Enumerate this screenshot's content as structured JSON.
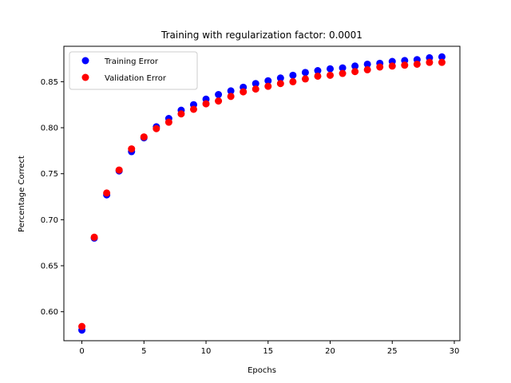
{
  "chart_data": {
    "type": "scatter",
    "title": "Training with regularization factor: 0.0001",
    "xlabel": "Epochs",
    "ylabel": "Percentage Correct",
    "xlim": [
      -1.45,
      30.45
    ],
    "ylim": [
      0.5685,
      0.8885
    ],
    "xticks": [
      0,
      5,
      10,
      15,
      20,
      25,
      30
    ],
    "yticks": [
      0.6,
      0.65,
      0.7,
      0.75,
      0.8,
      0.85
    ],
    "grid": false,
    "legend_position": "top-left",
    "x": [
      0,
      1,
      2,
      3,
      4,
      5,
      6,
      7,
      8,
      9,
      10,
      11,
      12,
      13,
      14,
      15,
      16,
      17,
      18,
      19,
      20,
      21,
      22,
      23,
      24,
      25,
      26,
      27,
      28,
      29
    ],
    "series": [
      {
        "name": "Training Error",
        "color": "#0000ff",
        "values": [
          0.58,
          0.68,
          0.727,
          0.753,
          0.774,
          0.789,
          0.801,
          0.81,
          0.819,
          0.825,
          0.831,
          0.836,
          0.84,
          0.844,
          0.848,
          0.851,
          0.854,
          0.857,
          0.86,
          0.862,
          0.864,
          0.865,
          0.867,
          0.869,
          0.87,
          0.872,
          0.873,
          0.874,
          0.876,
          0.877
        ]
      },
      {
        "name": "Validation Error",
        "color": "#ff0000",
        "values": [
          0.584,
          0.681,
          0.729,
          0.754,
          0.777,
          0.79,
          0.799,
          0.806,
          0.815,
          0.82,
          0.826,
          0.829,
          0.834,
          0.839,
          0.842,
          0.845,
          0.848,
          0.85,
          0.853,
          0.856,
          0.857,
          0.859,
          0.861,
          0.863,
          0.866,
          0.867,
          0.868,
          0.869,
          0.871,
          0.871
        ]
      }
    ]
  }
}
